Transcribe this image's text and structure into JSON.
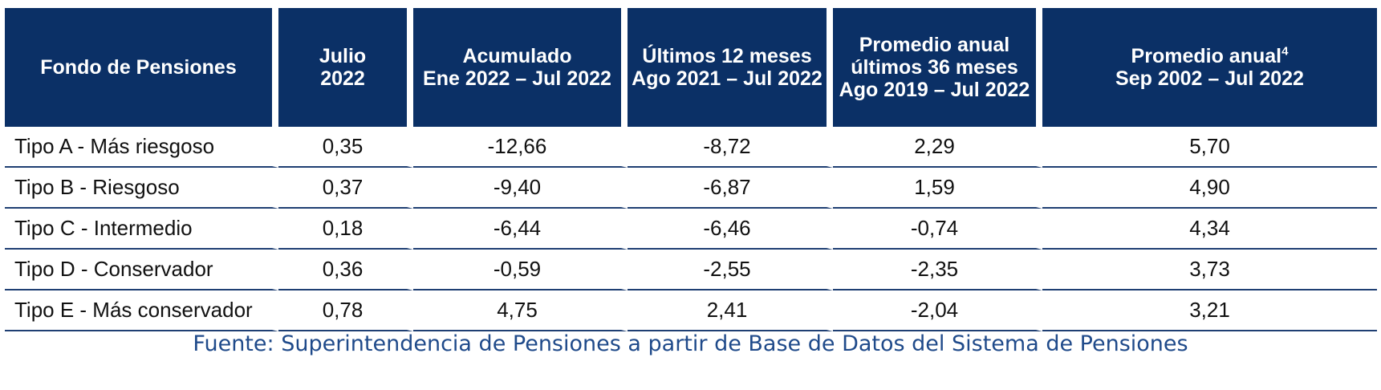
{
  "header": {
    "fund": "Fondo de Pensiones",
    "col1": {
      "line1": "Julio",
      "line2": "2022"
    },
    "col2": {
      "line1": "Acumulado",
      "line2": "Ene 2022 – Jul 2022"
    },
    "col3": {
      "line1": "Últimos 12 meses",
      "line2": "Ago 2021 – Jul 2022"
    },
    "col4": {
      "line1": "Promedio anual",
      "line2": "últimos 36 meses",
      "line3": "Ago 2019 – Jul 2022"
    },
    "col5": {
      "line1": "Promedio anual",
      "sup": "4",
      "line2": "Sep 2002 – Jul 2022"
    }
  },
  "rows": [
    {
      "name": "Tipo A - Más riesgoso",
      "values": [
        "0,35",
        "-12,66",
        "-8,72",
        "2,29",
        "5,70"
      ]
    },
    {
      "name": "Tipo B - Riesgoso",
      "values": [
        "0,37",
        "-9,40",
        "-6,87",
        "1,59",
        "4,90"
      ]
    },
    {
      "name": "Tipo C - Intermedio",
      "values": [
        "0,18",
        "-6,44",
        "-6,46",
        "-0,74",
        "4,34"
      ]
    },
    {
      "name": "Tipo D - Conservador",
      "values": [
        "0,36",
        "-0,59",
        "-2,55",
        "-2,35",
        "3,73"
      ]
    },
    {
      "name": "Tipo E - Más conservador",
      "values": [
        "0,78",
        "4,75",
        "2,41",
        "-2,04",
        "3,21"
      ]
    }
  ],
  "source": "Fuente: Superintendencia de Pensiones a partir de Base de Datos del Sistema de Pensiones"
}
